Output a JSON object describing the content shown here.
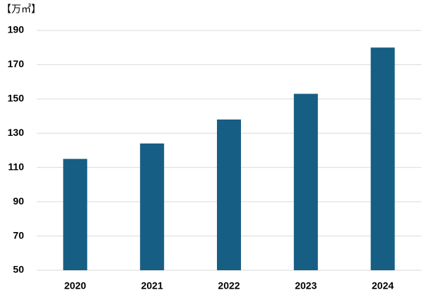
{
  "chart_data": {
    "type": "bar",
    "unit_label": "【万㎡】",
    "categories": [
      "2020",
      "2021",
      "2022",
      "2023",
      "2024"
    ],
    "values": [
      115,
      124,
      138,
      153,
      180
    ],
    "color": "#175e84",
    "ylim": [
      50,
      190
    ],
    "yticks": [
      50,
      70,
      90,
      110,
      130,
      150,
      170,
      190
    ],
    "grid": true
  }
}
